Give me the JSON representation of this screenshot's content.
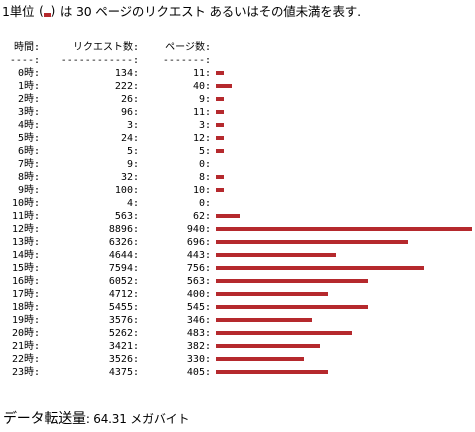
{
  "top_note": {
    "prefix": "1単位 ",
    "suffix": " は 30 ページのリクエスト あるいはその値未満を表す."
  },
  "table": {
    "headers": {
      "hour": "時間:",
      "requests": "リクエスト数:",
      "pages": "ページ数:"
    },
    "separators": {
      "hour": "----:",
      "requests": "------------:",
      "pages": "-------:"
    },
    "bar_color": "#b5292d",
    "rows": [
      {
        "hour": "0時:",
        "requests": "134:",
        "pages": "11:",
        "bar_units": 1
      },
      {
        "hour": "1時:",
        "requests": "222:",
        "pages": "40:",
        "bar_units": 2
      },
      {
        "hour": "2時:",
        "requests": "26:",
        "pages": "9:",
        "bar_units": 1
      },
      {
        "hour": "3時:",
        "requests": "96:",
        "pages": "11:",
        "bar_units": 1
      },
      {
        "hour": "4時:",
        "requests": "3:",
        "pages": "3:",
        "bar_units": 1
      },
      {
        "hour": "5時:",
        "requests": "24:",
        "pages": "12:",
        "bar_units": 1
      },
      {
        "hour": "6時:",
        "requests": "5:",
        "pages": "5:",
        "bar_units": 1
      },
      {
        "hour": "7時:",
        "requests": "9:",
        "pages": "0:",
        "bar_units": 0
      },
      {
        "hour": "8時:",
        "requests": "32:",
        "pages": "8:",
        "bar_units": 1
      },
      {
        "hour": "9時:",
        "requests": "100:",
        "pages": "10:",
        "bar_units": 1
      },
      {
        "hour": "10時:",
        "requests": "4:",
        "pages": "0:",
        "bar_units": 0
      },
      {
        "hour": "11時:",
        "requests": "563:",
        "pages": "62:",
        "bar_units": 3
      },
      {
        "hour": "12時:",
        "requests": "8896:",
        "pages": "940:",
        "bar_units": 32
      },
      {
        "hour": "13時:",
        "requests": "6326:",
        "pages": "696:",
        "bar_units": 24
      },
      {
        "hour": "14時:",
        "requests": "4644:",
        "pages": "443:",
        "bar_units": 15
      },
      {
        "hour": "15時:",
        "requests": "7594:",
        "pages": "756:",
        "bar_units": 26
      },
      {
        "hour": "16時:",
        "requests": "6052:",
        "pages": "563:",
        "bar_units": 19
      },
      {
        "hour": "17時:",
        "requests": "4712:",
        "pages": "400:",
        "bar_units": 14
      },
      {
        "hour": "18時:",
        "requests": "5455:",
        "pages": "545:",
        "bar_units": 19
      },
      {
        "hour": "19時:",
        "requests": "3576:",
        "pages": "346:",
        "bar_units": 12
      },
      {
        "hour": "20時:",
        "requests": "5262:",
        "pages": "483:",
        "bar_units": 17
      },
      {
        "hour": "21時:",
        "requests": "3421:",
        "pages": "382:",
        "bar_units": 13
      },
      {
        "hour": "22時:",
        "requests": "3526:",
        "pages": "330:",
        "bar_units": 11
      },
      {
        "hour": "23時:",
        "requests": "4375:",
        "pages": "405:",
        "bar_units": 14
      }
    ]
  },
  "transfer": {
    "label": "データ転送量",
    "value": ": 64.31 メガバイト"
  }
}
